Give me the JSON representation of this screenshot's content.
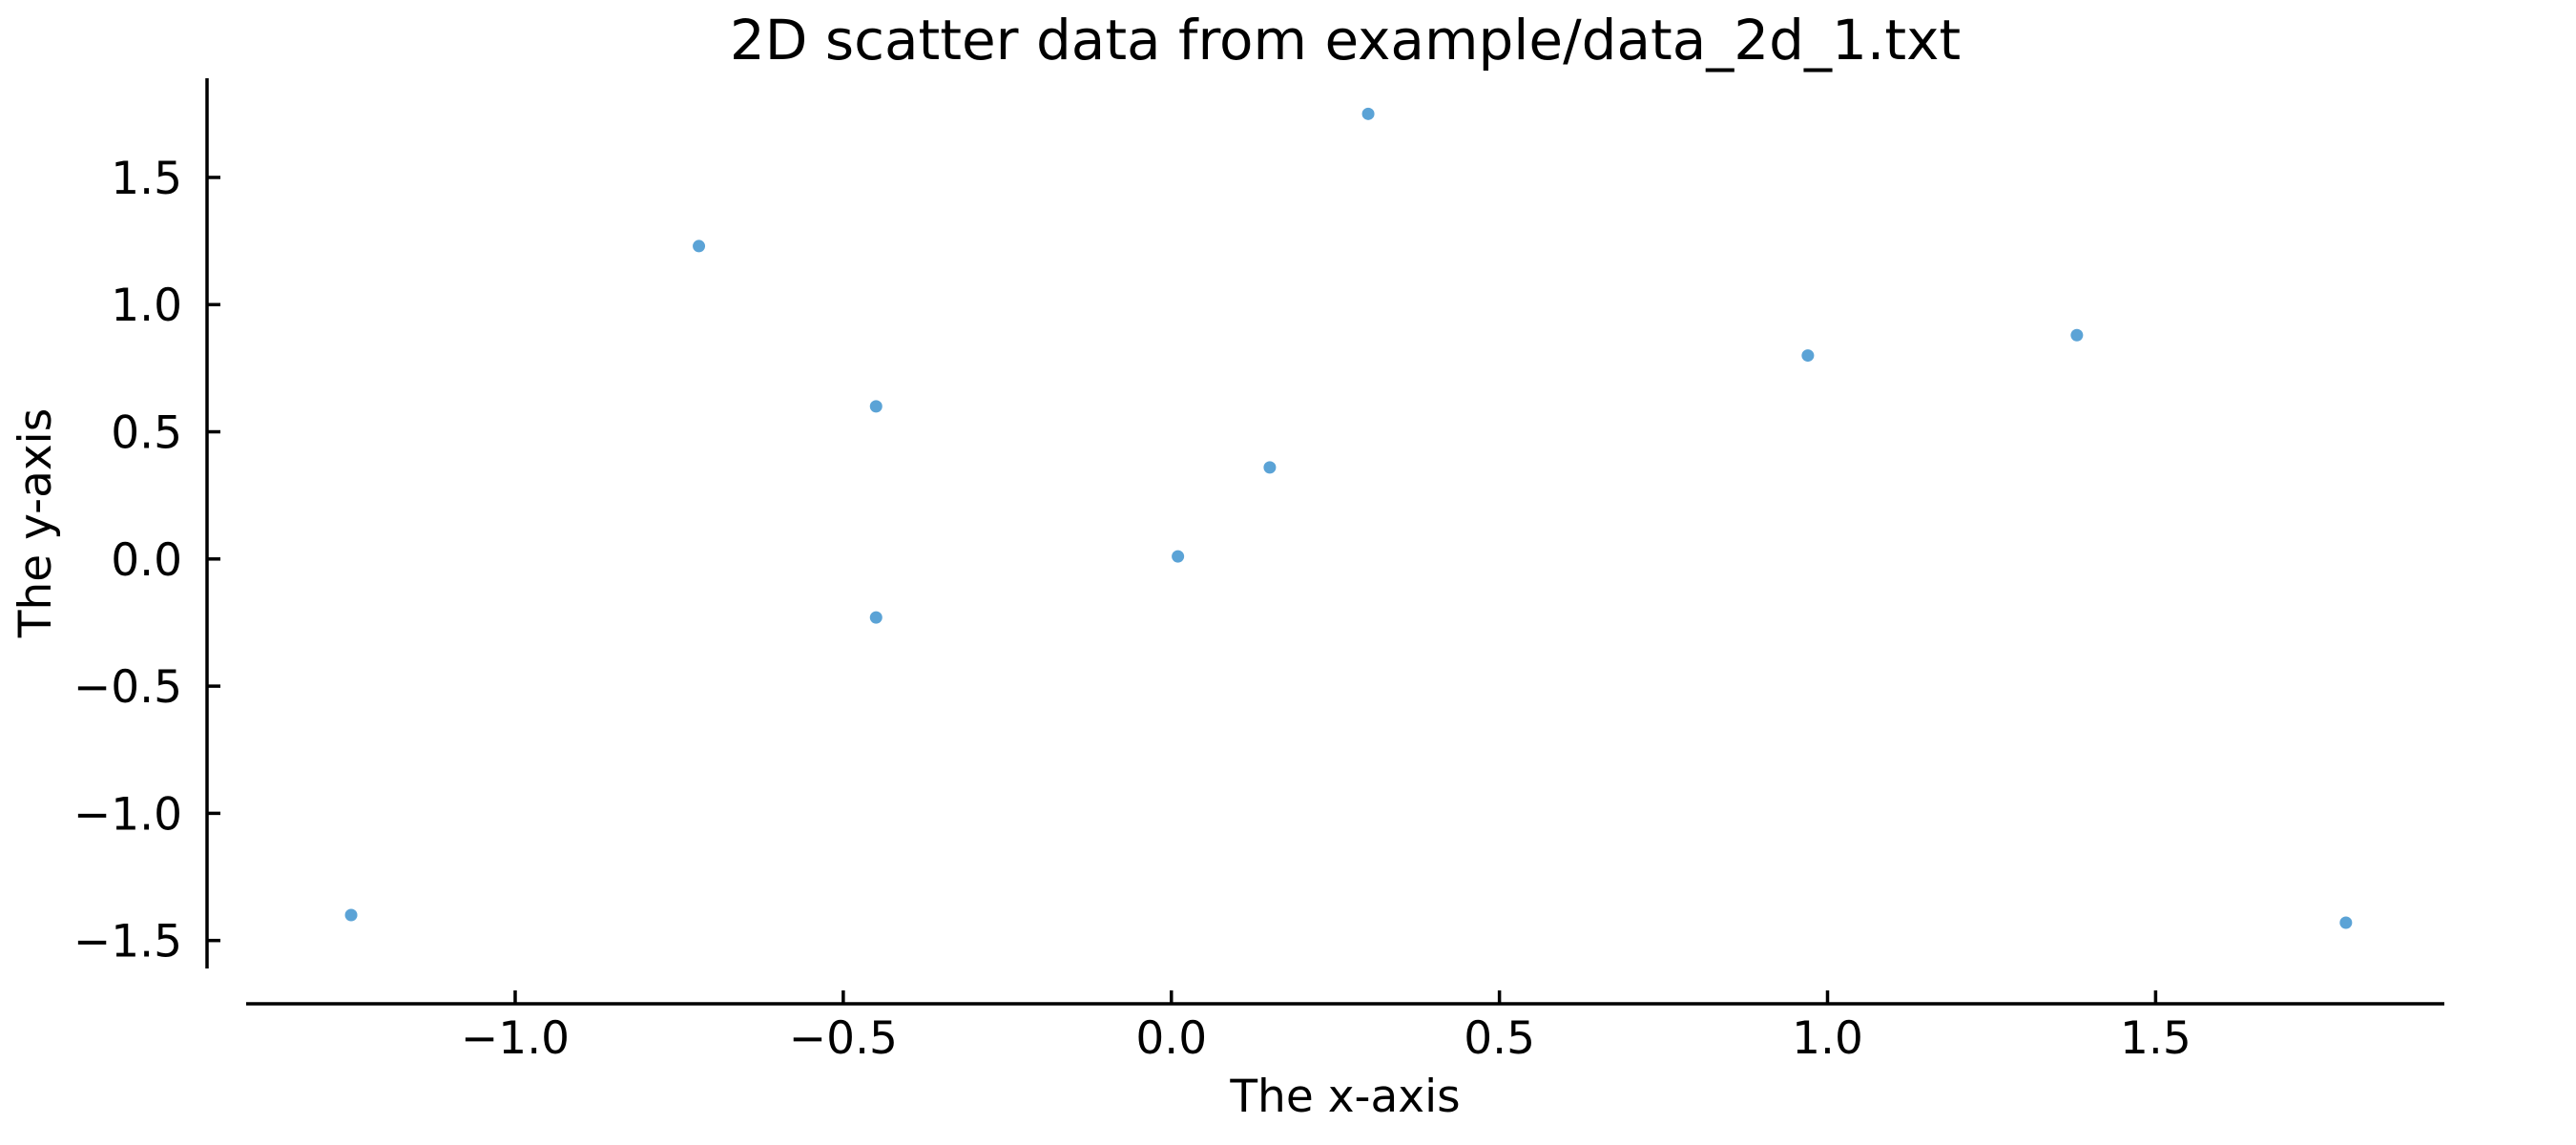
{
  "chart_data": {
    "type": "scatter",
    "title": "2D scatter data from example/data_2d_1.txt",
    "xlabel": "The x-axis",
    "ylabel": "The y-axis",
    "xlim": [
      -1.41,
      1.94
    ],
    "ylim": [
      -1.61,
      1.89
    ],
    "xticks": [
      -1.0,
      -0.5,
      0.0,
      0.5,
      1.0,
      1.5
    ],
    "xtick_labels": [
      "−1.0",
      "−0.5",
      "0.0",
      "0.5",
      "1.0",
      "1.5"
    ],
    "yticks": [
      1.5,
      1.0,
      0.5,
      0.0,
      -0.5,
      -1.0,
      -1.5
    ],
    "ytick_labels": [
      "1.5",
      "1.0",
      "0.5",
      "0.0",
      "−0.5",
      "−1.0",
      "−1.5"
    ],
    "grid": false,
    "marker_color": "#5ba3d6",
    "points": [
      {
        "x": -1.25,
        "y": -1.4
      },
      {
        "x": -0.72,
        "y": 1.23
      },
      {
        "x": -0.45,
        "y": 0.6
      },
      {
        "x": -0.45,
        "y": -0.23
      },
      {
        "x": 0.01,
        "y": 0.01
      },
      {
        "x": 0.15,
        "y": 0.36
      },
      {
        "x": 0.3,
        "y": 1.75
      },
      {
        "x": 0.97,
        "y": 0.8
      },
      {
        "x": 1.38,
        "y": 0.88
      },
      {
        "x": 1.79,
        "y": -1.43
      }
    ]
  }
}
